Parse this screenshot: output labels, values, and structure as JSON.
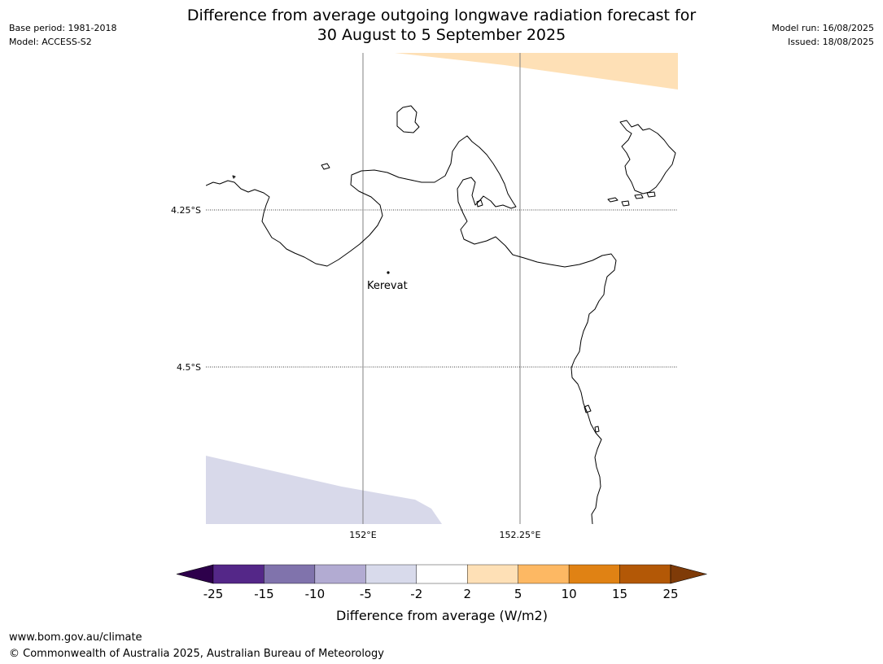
{
  "header": {
    "title_line1": "Difference from average outgoing longwave radiation forecast for",
    "title_line2": "30 August to 5 September 2025",
    "base_period": "Base period: 1981-2018",
    "model": "Model: ACCESS-S2",
    "model_run": "Model run: 16/08/2025",
    "issued": "Issued: 18/08/2025"
  },
  "map": {
    "latitude_labels": [
      "4.25°S",
      "4.5°S"
    ],
    "longitude_labels": [
      "152°E",
      "152.25°E"
    ],
    "places": [
      {
        "name": "Kerevat"
      }
    ],
    "colors": {
      "coast": "#000000",
      "lightpurple_anomaly": "#d8d9ea",
      "lightorange_anomaly": "#fee0b6",
      "gridline": "#808080"
    }
  },
  "colorbar": {
    "title": "Difference from average (W/m2)",
    "tick_labels": [
      "-25",
      "-15",
      "-10",
      "-5",
      "-2",
      "2",
      "5",
      "10",
      "15",
      "25"
    ],
    "bins": [
      {
        "range": "< -25",
        "color": "#2d004b"
      },
      {
        "range": "-25 to -15",
        "color": "#542788"
      },
      {
        "range": "-15 to -10",
        "color": "#8073ac"
      },
      {
        "range": "-10 to -5",
        "color": "#b2abd2"
      },
      {
        "range": "-5 to -2",
        "color": "#d8daeb"
      },
      {
        "range": "-2 to 2",
        "color": "#ffffff"
      },
      {
        "range": "2 to 5",
        "color": "#fee0b6"
      },
      {
        "range": "5 to 10",
        "color": "#fdb863"
      },
      {
        "range": "10 to 15",
        "color": "#e08214"
      },
      {
        "range": "15 to 25",
        "color": "#b35806"
      },
      {
        "range": "> 25",
        "color": "#7f3b08"
      }
    ]
  },
  "footer": {
    "url": "www.bom.gov.au/climate",
    "copyright": "© Commonwealth of Australia 2025, Australian Bureau of Meteorology"
  }
}
